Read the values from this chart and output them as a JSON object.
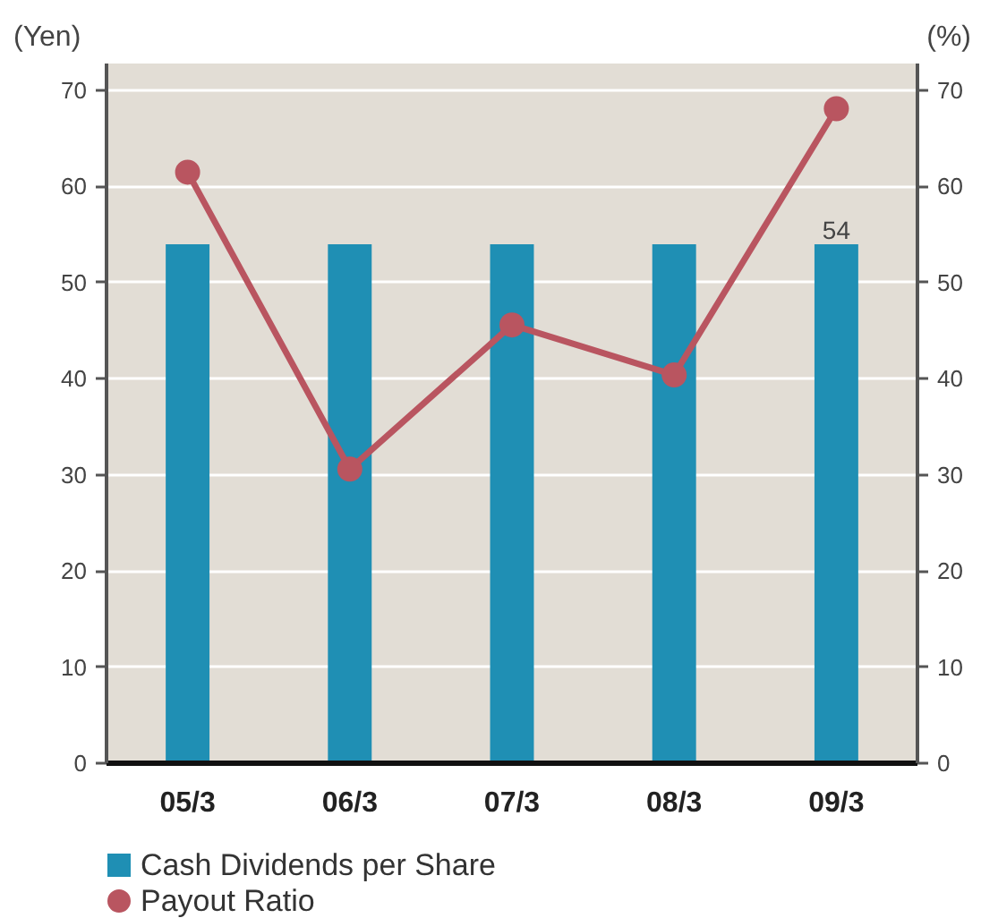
{
  "chart_data": {
    "type": "bar",
    "categories": [
      "05/3",
      "06/3",
      "07/3",
      "08/3",
      "09/3"
    ],
    "ylabel": "(Yen)",
    "y2label": "(%)",
    "ylim": [
      0,
      72.8
    ],
    "yticks": [
      0,
      10,
      20,
      30,
      40,
      50,
      60,
      70
    ],
    "y2lim": [
      0,
      72.8
    ],
    "y2ticks": [
      0,
      10,
      20,
      30,
      40,
      50,
      60,
      70
    ],
    "grid": "y",
    "legend": "bottom left",
    "series": [
      {
        "name": "Cash Dividends per Share",
        "color": "#1f8fb4",
        "values": [
          54,
          54,
          54,
          54,
          54
        ],
        "value_labels": [
          null,
          null,
          null,
          null,
          "54"
        ]
      },
      {
        "name": "Payout Ratio",
        "type": "line",
        "axis": "y2",
        "color": "#b95560",
        "marker": "circle",
        "line_style": "solid",
        "values": [
          61.5,
          30.6,
          45.6,
          40.4,
          68.1
        ]
      }
    ]
  }
}
